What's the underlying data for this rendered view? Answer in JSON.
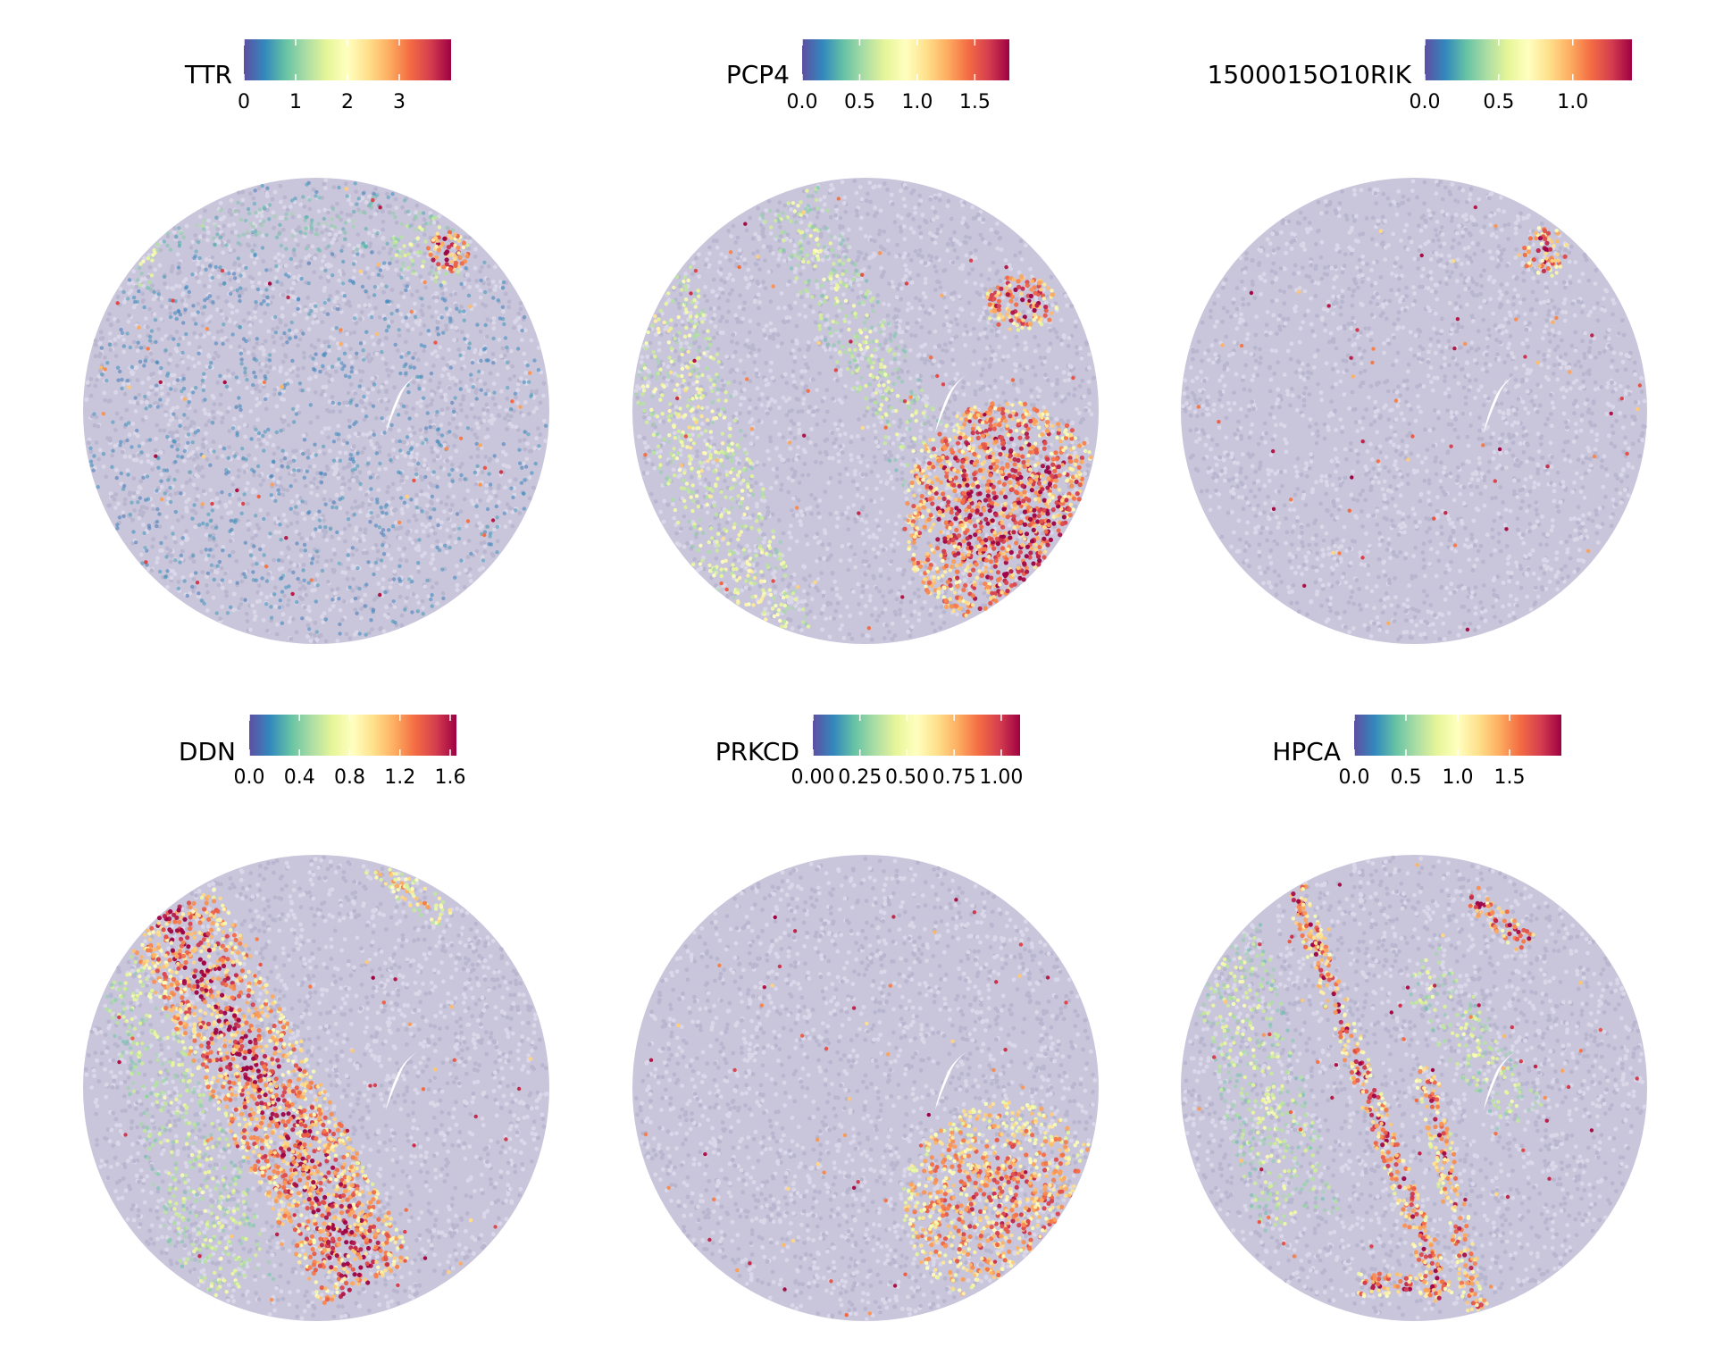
{
  "chart_data": [
    {
      "type": "scatter",
      "title": "TTR",
      "colormap": "Spectral_r",
      "colorbar": {
        "min": 0,
        "max": 4.0,
        "ticks": [
          "0",
          "1",
          "2",
          "3"
        ],
        "tick_values": [
          0,
          1,
          2,
          3
        ]
      },
      "expression_regions": [
        {
          "shape": "band",
          "center": [
            0.45,
            0.1
          ],
          "angle": 0,
          "len": 0.7,
          "wid": 0.12,
          "level": 0.28
        },
        {
          "shape": "blob",
          "center": [
            0.74,
            0.16
          ],
          "rx": 0.085,
          "ry": 0.075,
          "level": 0.45
        },
        {
          "shape": "blob",
          "center": [
            0.78,
            0.16
          ],
          "rx": 0.045,
          "ry": 0.045,
          "level": 1.0
        },
        {
          "shape": "blob",
          "center": [
            0.14,
            0.18
          ],
          "rx": 0.04,
          "ry": 0.06,
          "level": 0.45
        }
      ],
      "background_level": 0.12
    },
    {
      "type": "scatter",
      "title": "PCP4",
      "colormap": "Spectral_r",
      "colorbar": {
        "min": 0,
        "max": 1.8,
        "ticks": [
          "0.0",
          "0.5",
          "1.0",
          "1.5"
        ],
        "tick_values": [
          0,
          0.5,
          1.0,
          1.5
        ]
      },
      "expression_regions": [
        {
          "shape": "band",
          "center": [
            0.14,
            0.55
          ],
          "angle": 72,
          "len": 0.95,
          "wid": 0.2,
          "level": 0.55
        },
        {
          "shape": "band",
          "center": [
            0.52,
            0.4
          ],
          "angle": 62,
          "len": 0.8,
          "wid": 0.14,
          "level": 0.45
        },
        {
          "shape": "blob",
          "center": [
            0.83,
            0.27
          ],
          "rx": 0.08,
          "ry": 0.06,
          "level": 0.95
        },
        {
          "shape": "blob",
          "center": [
            0.8,
            0.73
          ],
          "rx": 0.22,
          "ry": 0.25,
          "level": 1.0
        }
      ],
      "background_level": 0.0
    },
    {
      "type": "scatter",
      "title": "1500015O10RIK",
      "colormap": "Spectral_r",
      "colorbar": {
        "min": 0,
        "max": 1.4,
        "ticks": [
          "0.0",
          "0.5",
          "1.0"
        ],
        "tick_values": [
          0,
          0.5,
          1.0
        ]
      },
      "expression_regions": [
        {
          "shape": "blob",
          "center": [
            0.78,
            0.16
          ],
          "rx": 0.05,
          "ry": 0.055,
          "level": 0.95
        }
      ],
      "background_level": 0.0
    },
    {
      "type": "scatter",
      "title": "DDN",
      "colormap": "Spectral_r",
      "colorbar": {
        "min": 0,
        "max": 1.65,
        "ticks": [
          "0.0",
          "0.4",
          "0.8",
          "1.2",
          "1.6"
        ],
        "tick_values": [
          0,
          0.4,
          0.8,
          1.2,
          1.6
        ]
      },
      "expression_regions": [
        {
          "shape": "band",
          "center": [
            0.4,
            0.52
          ],
          "angle": 62,
          "len": 0.9,
          "wid": 0.22,
          "level": 1.0
        },
        {
          "shape": "band",
          "center": [
            0.2,
            0.5
          ],
          "angle": 75,
          "len": 0.9,
          "wid": 0.2,
          "level": 0.45
        },
        {
          "shape": "band",
          "center": [
            0.7,
            0.08
          ],
          "angle": 35,
          "len": 0.2,
          "wid": 0.06,
          "level": 0.7
        }
      ],
      "background_level": 0.0
    },
    {
      "type": "scatter",
      "title": "PRKCD",
      "colormap": "Spectral_r",
      "colorbar": {
        "min": 0,
        "max": 1.1,
        "ticks": [
          "0.00",
          "0.25",
          "0.50",
          "0.75",
          "1.00"
        ],
        "tick_values": [
          0,
          0.25,
          0.5,
          0.75,
          1.0
        ]
      },
      "expression_regions": [
        {
          "shape": "blob",
          "center": [
            0.8,
            0.75
          ],
          "rx": 0.22,
          "ry": 0.22,
          "level": 0.85
        }
      ],
      "background_level": 0.0
    },
    {
      "type": "scatter",
      "title": "HPCA",
      "colormap": "Spectral_r",
      "colorbar": {
        "min": 0,
        "max": 2.0,
        "ticks": [
          "0.0",
          "0.5",
          "1.0",
          "1.5"
        ],
        "tick_values": [
          0,
          0.5,
          1.0,
          1.5
        ]
      },
      "expression_regions": [
        {
          "shape": "band",
          "center": [
            0.4,
            0.5
          ],
          "angle": 70,
          "len": 0.95,
          "wid": 0.05,
          "level": 1.0
        },
        {
          "shape": "band",
          "center": [
            0.58,
            0.72
          ],
          "angle": 78,
          "len": 0.55,
          "wid": 0.05,
          "level": 0.9
        },
        {
          "shape": "band",
          "center": [
            0.47,
            0.92
          ],
          "angle": 0,
          "len": 0.18,
          "wid": 0.05,
          "level": 1.0
        },
        {
          "shape": "band",
          "center": [
            0.68,
            0.14
          ],
          "angle": 40,
          "len": 0.16,
          "wid": 0.05,
          "level": 1.0
        },
        {
          "shape": "band",
          "center": [
            0.62,
            0.4
          ],
          "angle": 55,
          "len": 0.4,
          "wid": 0.12,
          "level": 0.45
        },
        {
          "shape": "band",
          "center": [
            0.15,
            0.4
          ],
          "angle": 75,
          "len": 0.8,
          "wid": 0.18,
          "level": 0.45
        }
      ],
      "background_level": 0.0
    }
  ]
}
